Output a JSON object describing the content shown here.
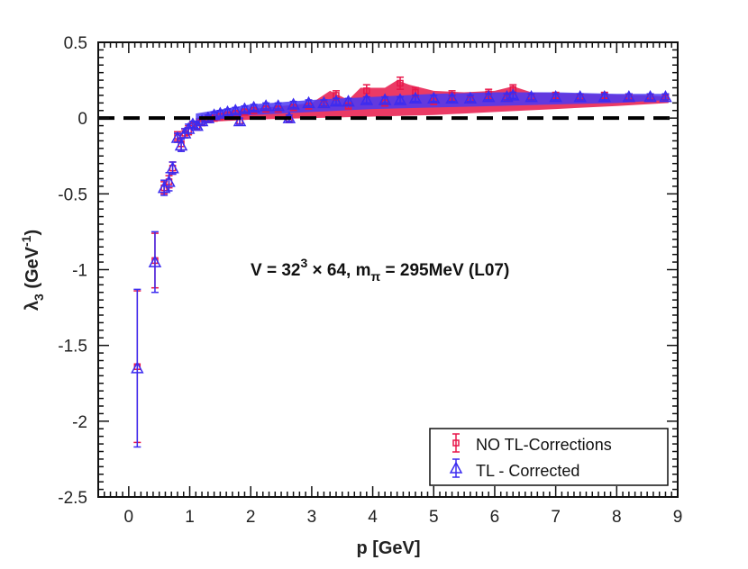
{
  "chart_data": {
    "type": "scatter",
    "title": "",
    "xlabel": "p [GeV]",
    "ylabel": {
      "base": "λ",
      "sub": "3",
      "unit_open": " (GeV",
      "unit_sup": "-1",
      "unit_close": ")"
    },
    "xlim": [
      -0.5,
      9
    ],
    "ylim": [
      -2.5,
      0.5
    ],
    "xticks": [
      0,
      1,
      2,
      3,
      4,
      5,
      6,
      7,
      8,
      9
    ],
    "yticks": [
      0.5,
      0,
      -0.5,
      -1,
      -1.5,
      -2,
      -2.5
    ],
    "xtick_labels": [
      "0",
      "1",
      "2",
      "3",
      "4",
      "5",
      "6",
      "7",
      "8",
      "9"
    ],
    "ytick_labels": [
      "0.5",
      "0",
      "-0.5",
      "-1",
      "-1.5",
      "-2",
      "-2.5"
    ],
    "reference_line": {
      "y": 0,
      "style": "dashed",
      "color": "#000000"
    },
    "annotation": {
      "prefix": "V = 32",
      "sup": "3",
      "mid": " × 64, m",
      "sub": "π",
      "suffix": " = 295MeV (L07)"
    },
    "legend": {
      "placement": "bottom-right",
      "entries": [
        "NO TL-Corrections",
        "TL - Corrected"
      ]
    },
    "series": [
      {
        "name": "NO TL-Corrections",
        "marker": "square",
        "color": "#e8174a",
        "points": [
          {
            "x": 0.14,
            "y": -1.64,
            "err": 0.5
          },
          {
            "x": 0.43,
            "y": -0.94,
            "err": 0.18
          },
          {
            "x": 0.58,
            "y": -0.46,
            "err": 0.04
          },
          {
            "x": 0.66,
            "y": -0.42,
            "err": 0.04
          },
          {
            "x": 0.72,
            "y": -0.33,
            "err": 0.04
          },
          {
            "x": 0.8,
            "y": -0.12,
            "err": 0.03
          },
          {
            "x": 0.86,
            "y": -0.17,
            "err": 0.04
          },
          {
            "x": 0.92,
            "y": -0.1,
            "err": 0.03
          },
          {
            "x": 0.98,
            "y": -0.08,
            "err": 0.03
          },
          {
            "x": 1.05,
            "y": -0.05,
            "err": 0.02
          },
          {
            "x": 1.12,
            "y": -0.06,
            "err": 0.02
          },
          {
            "x": 1.2,
            "y": -0.03,
            "err": 0.02
          },
          {
            "x": 1.3,
            "y": -0.01,
            "err": 0.02
          },
          {
            "x": 1.4,
            "y": 0.0,
            "err": 0.02
          },
          {
            "x": 1.5,
            "y": 0.01,
            "err": 0.02
          },
          {
            "x": 1.62,
            "y": 0.02,
            "err": 0.02
          },
          {
            "x": 1.75,
            "y": 0.03,
            "err": 0.02
          },
          {
            "x": 1.82,
            "y": -0.02,
            "err": 0.02
          },
          {
            "x": 1.9,
            "y": 0.04,
            "err": 0.02
          },
          {
            "x": 2.05,
            "y": 0.05,
            "err": 0.02
          },
          {
            "x": 2.25,
            "y": 0.06,
            "err": 0.02
          },
          {
            "x": 2.45,
            "y": 0.06,
            "err": 0.02
          },
          {
            "x": 2.63,
            "y": -0.01,
            "err": 0.02
          },
          {
            "x": 2.7,
            "y": 0.07,
            "err": 0.02
          },
          {
            "x": 2.95,
            "y": 0.08,
            "err": 0.02
          },
          {
            "x": 3.2,
            "y": 0.09,
            "err": 0.02
          },
          {
            "x": 3.4,
            "y": 0.15,
            "err": 0.03
          },
          {
            "x": 3.6,
            "y": 0.08,
            "err": 0.02
          },
          {
            "x": 3.9,
            "y": 0.18,
            "err": 0.04
          },
          {
            "x": 4.2,
            "y": 0.1,
            "err": 0.02
          },
          {
            "x": 4.45,
            "y": 0.23,
            "err": 0.04
          },
          {
            "x": 4.7,
            "y": 0.17,
            "err": 0.03
          },
          {
            "x": 5.0,
            "y": 0.11,
            "err": 0.02
          },
          {
            "x": 5.3,
            "y": 0.15,
            "err": 0.03
          },
          {
            "x": 5.6,
            "y": 0.12,
            "err": 0.02
          },
          {
            "x": 5.9,
            "y": 0.16,
            "err": 0.03
          },
          {
            "x": 6.2,
            "y": 0.13,
            "err": 0.02
          },
          {
            "x": 6.3,
            "y": 0.19,
            "err": 0.03
          },
          {
            "x": 6.6,
            "y": 0.14,
            "err": 0.02
          },
          {
            "x": 7.0,
            "y": 0.15,
            "err": 0.02
          },
          {
            "x": 7.4,
            "y": 0.14,
            "err": 0.02
          },
          {
            "x": 7.8,
            "y": 0.15,
            "err": 0.02
          },
          {
            "x": 8.2,
            "y": 0.14,
            "err": 0.02
          },
          {
            "x": 8.55,
            "y": 0.14,
            "err": 0.02
          },
          {
            "x": 8.8,
            "y": 0.13,
            "err": 0.02
          }
        ]
      },
      {
        "name": "TL - Corrected",
        "marker": "triangle",
        "color": "#3b2bf0",
        "points": [
          {
            "x": 0.14,
            "y": -1.65,
            "err": 0.52
          },
          {
            "x": 0.43,
            "y": -0.95,
            "err": 0.2
          },
          {
            "x": 0.58,
            "y": -0.46,
            "err": 0.05
          },
          {
            "x": 0.66,
            "y": -0.42,
            "err": 0.06
          },
          {
            "x": 0.72,
            "y": -0.33,
            "err": 0.04
          },
          {
            "x": 0.8,
            "y": -0.13,
            "err": 0.03
          },
          {
            "x": 0.86,
            "y": -0.18,
            "err": 0.04
          },
          {
            "x": 0.92,
            "y": -0.1,
            "err": 0.03
          },
          {
            "x": 0.98,
            "y": -0.07,
            "err": 0.03
          },
          {
            "x": 1.05,
            "y": -0.04,
            "err": 0.02
          },
          {
            "x": 1.12,
            "y": -0.05,
            "err": 0.02
          },
          {
            "x": 1.2,
            "y": -0.02,
            "err": 0.02
          },
          {
            "x": 1.3,
            "y": 0.0,
            "err": 0.02
          },
          {
            "x": 1.4,
            "y": 0.02,
            "err": 0.02
          },
          {
            "x": 1.5,
            "y": 0.03,
            "err": 0.02
          },
          {
            "x": 1.62,
            "y": 0.04,
            "err": 0.02
          },
          {
            "x": 1.75,
            "y": 0.05,
            "err": 0.02
          },
          {
            "x": 1.82,
            "y": -0.02,
            "err": 0.02
          },
          {
            "x": 1.9,
            "y": 0.06,
            "err": 0.02
          },
          {
            "x": 2.05,
            "y": 0.07,
            "err": 0.02
          },
          {
            "x": 2.25,
            "y": 0.08,
            "err": 0.02
          },
          {
            "x": 2.45,
            "y": 0.08,
            "err": 0.02
          },
          {
            "x": 2.63,
            "y": 0.0,
            "err": 0.02
          },
          {
            "x": 2.7,
            "y": 0.09,
            "err": 0.02
          },
          {
            "x": 2.95,
            "y": 0.1,
            "err": 0.02
          },
          {
            "x": 3.2,
            "y": 0.1,
            "err": 0.02
          },
          {
            "x": 3.4,
            "y": 0.11,
            "err": 0.02
          },
          {
            "x": 3.6,
            "y": 0.11,
            "err": 0.02
          },
          {
            "x": 3.9,
            "y": 0.12,
            "err": 0.02
          },
          {
            "x": 4.2,
            "y": 0.12,
            "err": 0.02
          },
          {
            "x": 4.45,
            "y": 0.12,
            "err": 0.02
          },
          {
            "x": 4.7,
            "y": 0.13,
            "err": 0.02
          },
          {
            "x": 5.0,
            "y": 0.13,
            "err": 0.02
          },
          {
            "x": 5.3,
            "y": 0.13,
            "err": 0.02
          },
          {
            "x": 5.6,
            "y": 0.13,
            "err": 0.02
          },
          {
            "x": 5.9,
            "y": 0.14,
            "err": 0.02
          },
          {
            "x": 6.2,
            "y": 0.14,
            "err": 0.02
          },
          {
            "x": 6.3,
            "y": 0.15,
            "err": 0.02
          },
          {
            "x": 6.6,
            "y": 0.14,
            "err": 0.02
          },
          {
            "x": 7.0,
            "y": 0.14,
            "err": 0.02
          },
          {
            "x": 7.4,
            "y": 0.14,
            "err": 0.02
          },
          {
            "x": 7.8,
            "y": 0.14,
            "err": 0.02
          },
          {
            "x": 8.2,
            "y": 0.14,
            "err": 0.02
          },
          {
            "x": 8.55,
            "y": 0.14,
            "err": 0.02
          },
          {
            "x": 8.8,
            "y": 0.14,
            "err": 0.02
          }
        ]
      }
    ],
    "bands": [
      {
        "series": "NO TL-Corrections",
        "color": "#e8174a",
        "upper": [
          [
            1.1,
            0.0
          ],
          [
            2.0,
            0.06
          ],
          [
            3.0,
            0.1
          ],
          [
            3.3,
            0.18
          ],
          [
            3.6,
            0.12
          ],
          [
            3.8,
            0.2
          ],
          [
            4.2,
            0.2
          ],
          [
            4.4,
            0.25
          ],
          [
            4.6,
            0.22
          ],
          [
            5.0,
            0.18
          ],
          [
            5.5,
            0.17
          ],
          [
            6.0,
            0.18
          ],
          [
            6.3,
            0.21
          ],
          [
            6.6,
            0.17
          ],
          [
            7.5,
            0.16
          ],
          [
            8.5,
            0.15
          ],
          [
            8.85,
            0.14
          ]
        ],
        "lower": [
          [
            8.85,
            0.1
          ],
          [
            8.0,
            0.08
          ],
          [
            7.0,
            0.06
          ],
          [
            6.0,
            0.04
          ],
          [
            5.0,
            0.02
          ],
          [
            4.0,
            0.01
          ],
          [
            3.0,
            0.0
          ],
          [
            2.0,
            -0.01
          ],
          [
            1.1,
            -0.03
          ]
        ]
      },
      {
        "series": "TL - Corrected",
        "color": "#4a3af5",
        "upper": [
          [
            1.1,
            0.03
          ],
          [
            2.0,
            0.09
          ],
          [
            3.0,
            0.12
          ],
          [
            4.0,
            0.14
          ],
          [
            5.0,
            0.16
          ],
          [
            6.0,
            0.17
          ],
          [
            7.0,
            0.17
          ],
          [
            8.0,
            0.16
          ],
          [
            8.85,
            0.16
          ]
        ],
        "lower": [
          [
            8.85,
            0.12
          ],
          [
            8.0,
            0.1
          ],
          [
            7.0,
            0.09
          ],
          [
            6.0,
            0.08
          ],
          [
            5.0,
            0.07
          ],
          [
            4.0,
            0.06
          ],
          [
            3.0,
            0.04
          ],
          [
            2.0,
            0.02
          ],
          [
            1.1,
            -0.01
          ]
        ]
      }
    ]
  }
}
